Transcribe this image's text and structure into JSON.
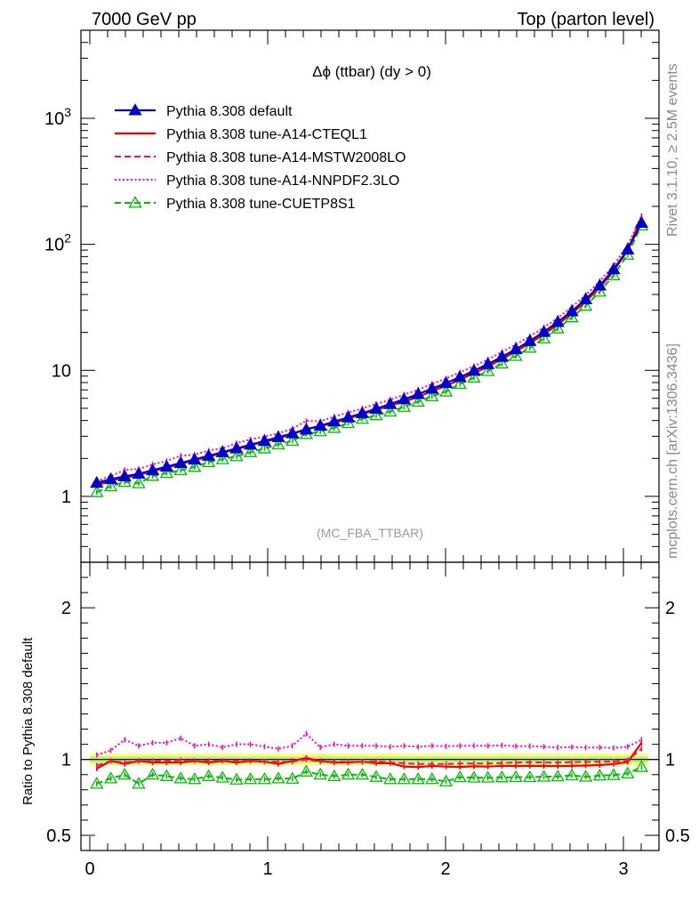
{
  "header": {
    "left": "7000 GeV pp",
    "right": "Top (parton level)"
  },
  "side": {
    "rivet": "Rivet 3.1.10, ≥ 2.5M events",
    "mcplots": "mcplots.cern.ch [arXiv:1306.3436]"
  },
  "plot_title": "Δϕ (ttbar) (dy > 0)",
  "analysis_label": "(MC_FBA_TTBAR)",
  "chart_data": [
    {
      "type": "line",
      "yscale": "log",
      "ylim": [
        0.3,
        5000
      ],
      "xlim": [
        -0.05,
        3.2
      ],
      "ytick_labels": [
        "1",
        "10",
        "10^2",
        "10^3"
      ],
      "ytick_values": [
        1,
        10,
        100,
        1000
      ],
      "legend_position": "top-left",
      "x": [
        0.039,
        0.118,
        0.196,
        0.275,
        0.353,
        0.432,
        0.511,
        0.589,
        0.668,
        0.746,
        0.825,
        0.903,
        0.982,
        1.06,
        1.139,
        1.217,
        1.296,
        1.374,
        1.453,
        1.532,
        1.61,
        1.689,
        1.767,
        1.846,
        1.924,
        2.003,
        2.081,
        2.16,
        2.238,
        2.317,
        2.395,
        2.474,
        2.553,
        2.631,
        2.71,
        2.788,
        2.867,
        2.945,
        3.024,
        3.102
      ],
      "series": [
        {
          "name": "Pythia 8.308 default",
          "color": "#0000cc",
          "style": "solid",
          "marker": "filled-triangle",
          "values": [
            1.28,
            1.37,
            1.44,
            1.51,
            1.61,
            1.72,
            1.84,
            1.96,
            2.1,
            2.24,
            2.4,
            2.57,
            2.75,
            2.95,
            3.16,
            3.39,
            3.64,
            3.92,
            4.23,
            4.57,
            4.96,
            5.4,
            5.9,
            6.48,
            7.15,
            7.93,
            8.84,
            9.93,
            11.2,
            12.8,
            14.7,
            17.1,
            20.2,
            24.2,
            29.4,
            36.7,
            47.1,
            63.3,
            91.0,
            148
          ]
        },
        {
          "name": "Pythia 8.308 tune-A14-CTEQL1",
          "color": "#ee0000",
          "style": "solid",
          "marker": "none",
          "values": [
            1.21,
            1.35,
            1.39,
            1.49,
            1.58,
            1.69,
            1.81,
            1.94,
            2.06,
            2.22,
            2.36,
            2.55,
            2.71,
            2.87,
            3.13,
            3.43,
            3.6,
            3.84,
            4.14,
            4.51,
            4.84,
            5.27,
            5.62,
            6.16,
            6.84,
            7.55,
            8.41,
            9.49,
            10.7,
            12.3,
            14.1,
            16.4,
            19.3,
            23.1,
            28.2,
            35.2,
            45.4,
            61.4,
            89.5,
            164
          ]
        },
        {
          "name": "Pythia 8.308 tune-A14-MSTW2008LO",
          "color": "#ff1050",
          "style": "dashed",
          "marker": "none",
          "values": [
            1.23,
            1.36,
            1.41,
            1.49,
            1.59,
            1.7,
            1.83,
            1.94,
            2.08,
            2.22,
            2.38,
            2.54,
            2.71,
            2.91,
            3.12,
            3.39,
            3.59,
            3.86,
            4.17,
            4.49,
            4.9,
            5.3,
            5.75,
            6.29,
            6.94,
            7.7,
            8.6,
            9.66,
            10.9,
            12.5,
            14.4,
            16.8,
            19.8,
            23.7,
            28.9,
            36.1,
            46.4,
            62.4,
            90.5,
            158
          ]
        },
        {
          "name": "Pythia 8.308 tune-A14-NNPDF2.3LO",
          "color": "#ff00cc",
          "style": "dotted",
          "marker": "none",
          "values": [
            1.32,
            1.45,
            1.62,
            1.65,
            1.79,
            1.91,
            2.1,
            2.14,
            2.31,
            2.41,
            2.64,
            2.83,
            2.98,
            3.16,
            3.45,
            3.97,
            3.94,
            4.3,
            4.62,
            4.98,
            5.41,
            5.85,
            6.43,
            7.02,
            7.8,
            8.62,
            9.64,
            10.8,
            12.2,
            14.0,
            16.0,
            18.6,
            21.9,
            26.1,
            31.8,
            39.6,
            50.8,
            68.1,
            98.6,
            168
          ]
        },
        {
          "name": "Pythia 8.308 tune-CUETP8S1",
          "color": "#00bb00",
          "style": "dashed",
          "marker": "open-triangle",
          "values": [
            1.08,
            1.2,
            1.3,
            1.27,
            1.45,
            1.53,
            1.61,
            1.71,
            1.87,
            1.97,
            2.08,
            2.24,
            2.4,
            2.58,
            2.76,
            3.12,
            3.28,
            3.49,
            3.81,
            4.12,
            4.4,
            4.7,
            5.13,
            5.64,
            6.22,
            6.78,
            7.8,
            8.74,
            9.87,
            11.3,
            13.0,
            15.1,
            17.9,
            21.5,
            26.3,
            32.5,
            42.1,
            56.8,
            82.6,
            141
          ]
        }
      ]
    },
    {
      "type": "line",
      "ylabel": "Ratio to Pythia 8.308 default",
      "ylim": [
        0.4,
        2.3
      ],
      "xlim": [
        -0.05,
        3.2
      ],
      "ytick_labels": [
        "0.5",
        "1",
        "2"
      ],
      "ytick_values": [
        0.5,
        1,
        2
      ],
      "xtick_labels": [
        "0",
        "1",
        "2",
        "3"
      ],
      "xtick_values": [
        0,
        1,
        2,
        3
      ],
      "reference_line": 1,
      "band": {
        "color": "#ffff88",
        "lo": 0.96,
        "hi": 1.04
      },
      "inner_band": {
        "color": "#bbee88",
        "lo": 0.98,
        "hi": 1.02
      },
      "x": [
        0.039,
        0.118,
        0.196,
        0.275,
        0.353,
        0.432,
        0.511,
        0.589,
        0.668,
        0.746,
        0.825,
        0.903,
        0.982,
        1.06,
        1.139,
        1.217,
        1.296,
        1.374,
        1.453,
        1.532,
        1.61,
        1.689,
        1.767,
        1.846,
        1.924,
        2.003,
        2.081,
        2.16,
        2.238,
        2.317,
        2.395,
        2.474,
        2.553,
        2.631,
        2.71,
        2.788,
        2.867,
        2.945,
        3.024,
        3.102
      ],
      "series": [
        {
          "name": "Pythia 8.308 tune-A14-CTEQL1",
          "color": "#ee0000",
          "style": "solid",
          "values": [
            0.94,
            0.99,
            0.97,
            0.99,
            0.98,
            0.98,
            0.98,
            0.99,
            0.98,
            0.99,
            0.98,
            0.99,
            0.985,
            0.97,
            0.99,
            1.01,
            0.99,
            0.98,
            0.98,
            0.985,
            0.975,
            0.975,
            0.953,
            0.95,
            0.957,
            0.953,
            0.951,
            0.955,
            0.953,
            0.958,
            0.957,
            0.958,
            0.957,
            0.956,
            0.958,
            0.96,
            0.963,
            0.97,
            0.983,
            1.11
          ]
        },
        {
          "name": "Pythia 8.308 tune-A14-MSTW2008LO",
          "color": "#ff1050",
          "style": "dashed",
          "values": [
            0.96,
            0.99,
            0.98,
            0.99,
            0.99,
            0.99,
            0.995,
            0.99,
            0.99,
            0.99,
            0.99,
            0.99,
            0.985,
            0.985,
            0.985,
            1.0,
            0.985,
            0.985,
            0.985,
            0.983,
            0.988,
            0.98,
            0.975,
            0.97,
            0.97,
            0.97,
            0.973,
            0.973,
            0.973,
            0.977,
            0.98,
            0.982,
            0.98,
            0.979,
            0.983,
            0.984,
            0.985,
            0.986,
            0.995,
            1.07
          ]
        },
        {
          "name": "Pythia 8.308 tune-A14-NNPDF2.3LO",
          "color": "#ff00cc",
          "style": "dotted",
          "values": [
            1.03,
            1.06,
            1.13,
            1.09,
            1.11,
            1.11,
            1.14,
            1.09,
            1.1,
            1.08,
            1.1,
            1.1,
            1.085,
            1.07,
            1.09,
            1.17,
            1.08,
            1.1,
            1.09,
            1.09,
            1.09,
            1.083,
            1.09,
            1.083,
            1.09,
            1.087,
            1.09,
            1.09,
            1.09,
            1.093,
            1.088,
            1.088,
            1.084,
            1.079,
            1.082,
            1.079,
            1.079,
            1.076,
            1.084,
            1.13
          ]
        },
        {
          "name": "Pythia 8.308 tune-CUETP8S1",
          "color": "#00bb00",
          "style": "dashed",
          "values": [
            0.84,
            0.875,
            0.9,
            0.84,
            0.9,
            0.89,
            0.875,
            0.87,
            0.89,
            0.88,
            0.867,
            0.87,
            0.87,
            0.875,
            0.873,
            0.92,
            0.9,
            0.89,
            0.9,
            0.9,
            0.885,
            0.87,
            0.87,
            0.87,
            0.87,
            0.855,
            0.883,
            0.88,
            0.88,
            0.882,
            0.884,
            0.883,
            0.886,
            0.888,
            0.895,
            0.886,
            0.894,
            0.897,
            0.908,
            0.95
          ]
        }
      ]
    }
  ]
}
